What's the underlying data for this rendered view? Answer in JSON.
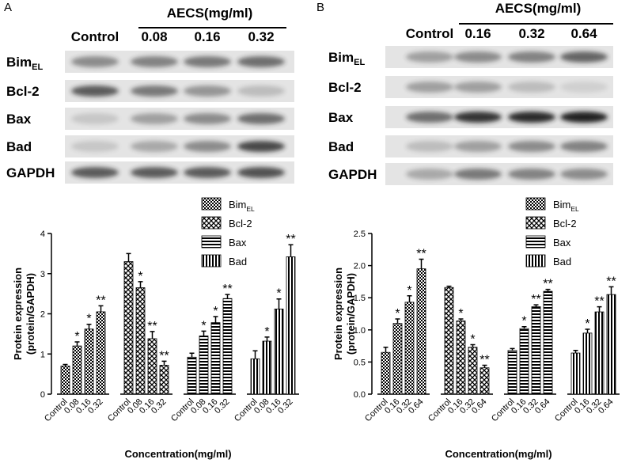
{
  "panels": [
    {
      "letter": "A",
      "treatment": "AECS(mg/ml)",
      "lanes": [
        "Control",
        "0.08",
        "0.16",
        "0.32"
      ],
      "proteins": [
        {
          "name": "Bim",
          "subscript": "EL"
        },
        {
          "name": "Bcl-2"
        },
        {
          "name": "Bax"
        },
        {
          "name": "Bad"
        },
        {
          "name": "GAPDH"
        }
      ]
    },
    {
      "letter": "B",
      "treatment": "AECS(mg/ml)",
      "lanes": [
        "Control",
        "0.16",
        "0.32",
        "0.64"
      ],
      "proteins": [
        {
          "name": "Bim",
          "subscript": "EL"
        },
        {
          "name": "Bcl-2"
        },
        {
          "name": "Bax"
        },
        {
          "name": "Bad"
        },
        {
          "name": "GAPDH"
        }
      ]
    }
  ],
  "chart_data": [
    {
      "type": "bar",
      "ylabel": [
        "Protein expression",
        "(protein/GAPDH)"
      ],
      "xlabel": "Concentration(mg/ml)",
      "categories": [
        "Control",
        "0.08",
        "0.16",
        "0.32"
      ],
      "ylim": [
        0,
        4
      ],
      "yticks": [
        0,
        1,
        2,
        3,
        4
      ],
      "series": [
        {
          "name": "Bim",
          "name_subscript": "EL",
          "pattern": "checker",
          "color": "#000000",
          "values": [
            0.7,
            1.2,
            1.62,
            2.05
          ],
          "errors": [
            0.04,
            0.1,
            0.12,
            0.15
          ],
          "significance": [
            null,
            "*",
            "*",
            "**"
          ]
        },
        {
          "name": "Bcl-2",
          "pattern": "diamond",
          "color": "#000000",
          "values": [
            3.3,
            2.65,
            1.38,
            0.72
          ],
          "errors": [
            0.2,
            0.15,
            0.18,
            0.1
          ],
          "significance": [
            null,
            "*",
            "**",
            "**"
          ]
        },
        {
          "name": "Bax",
          "pattern": "hstripe",
          "color": "#000000",
          "values": [
            0.92,
            1.45,
            1.78,
            2.38
          ],
          "errors": [
            0.1,
            0.12,
            0.15,
            0.1
          ],
          "significance": [
            null,
            "*",
            "*",
            "**"
          ]
        },
        {
          "name": "Bad",
          "pattern": "vstripe",
          "color": "#000000",
          "values": [
            0.88,
            1.32,
            2.12,
            3.42
          ],
          "errors": [
            0.2,
            0.1,
            0.25,
            0.3
          ],
          "significance": [
            null,
            "*",
            "*",
            "**"
          ]
        }
      ]
    },
    {
      "type": "bar",
      "ylabel": [
        "Protein expression",
        "(protein/GAPDH)"
      ],
      "xlabel": "Concentration(mg/ml)",
      "categories": [
        "Control",
        "0.16",
        "0.32",
        "0.64"
      ],
      "ylim": [
        0,
        2.5
      ],
      "yticks": [
        {
          "value": 0,
          "label": "0.0"
        },
        0.5,
        {
          "value": 1,
          "label": "1.0"
        },
        1.5,
        {
          "value": 2,
          "label": "2.0"
        },
        2.5
      ],
      "series": [
        {
          "name": "Bim",
          "name_subscript": "EL",
          "pattern": "checker",
          "color": "#000000",
          "values": [
            0.65,
            1.1,
            1.43,
            1.95
          ],
          "errors": [
            0.08,
            0.07,
            0.1,
            0.15
          ],
          "significance": [
            null,
            "*",
            "*",
            "**"
          ]
        },
        {
          "name": "Bcl-2",
          "pattern": "diamond",
          "color": "#000000",
          "values": [
            1.66,
            1.14,
            0.73,
            0.41
          ],
          "errors": [
            0.02,
            0.03,
            0.04,
            0.04
          ],
          "significance": [
            null,
            "*",
            "*",
            "**"
          ]
        },
        {
          "name": "Bax",
          "pattern": "hstripe",
          "color": "#000000",
          "values": [
            0.68,
            1.02,
            1.36,
            1.6
          ],
          "errors": [
            0.03,
            0.03,
            0.03,
            0.03
          ],
          "significance": [
            null,
            "*",
            "**",
            "**"
          ]
        },
        {
          "name": "Bad",
          "pattern": "vstripe",
          "color": "#000000",
          "values": [
            0.64,
            0.95,
            1.28,
            1.55
          ],
          "errors": [
            0.04,
            0.06,
            0.08,
            0.12
          ],
          "significance": [
            null,
            "*",
            "**",
            "**"
          ]
        }
      ]
    }
  ]
}
